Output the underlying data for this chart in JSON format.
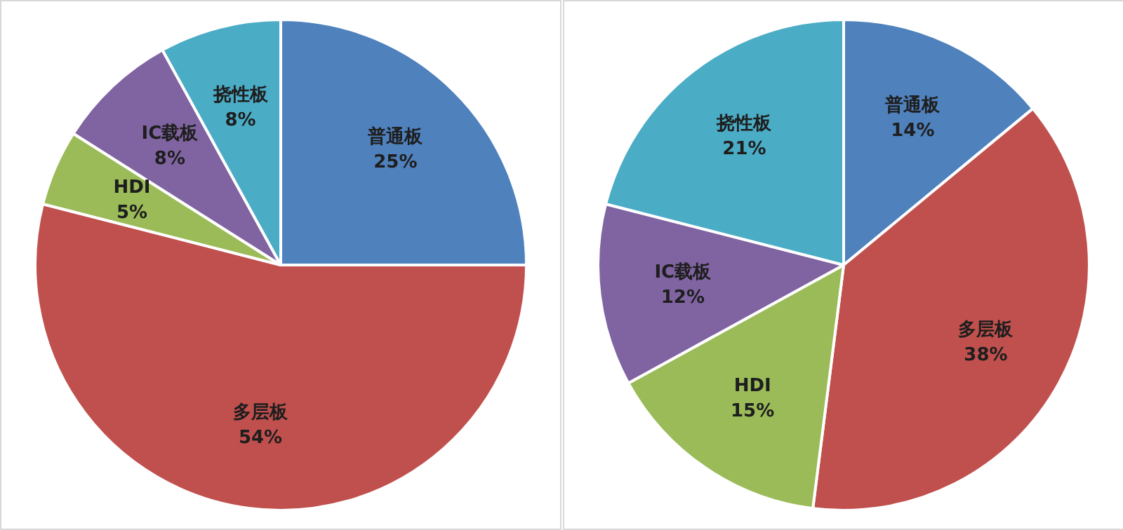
{
  "chart_data": [
    {
      "type": "pie",
      "categories": [
        "普通板",
        "多层板",
        "HDI",
        "IC载板",
        "挠性板"
      ],
      "values": [
        25,
        54,
        5,
        8,
        8
      ],
      "value_labels": [
        "25%",
        "54%",
        "5%",
        "8%",
        "8%"
      ],
      "colors": [
        "#4f81bd",
        "#c0504d",
        "#9bbb59",
        "#8064a2",
        "#4bacc6"
      ],
      "legend": false
    },
    {
      "type": "pie",
      "categories": [
        "普通板",
        "多层板",
        "HDI",
        "IC载板",
        "挠性板"
      ],
      "values": [
        14,
        38,
        15,
        12,
        21
      ],
      "value_labels": [
        "14%",
        "38%",
        "15%",
        "12%",
        "21%"
      ],
      "colors": [
        "#4f81bd",
        "#c0504d",
        "#9bbb59",
        "#8064a2",
        "#4bacc6"
      ],
      "legend": false
    }
  ]
}
